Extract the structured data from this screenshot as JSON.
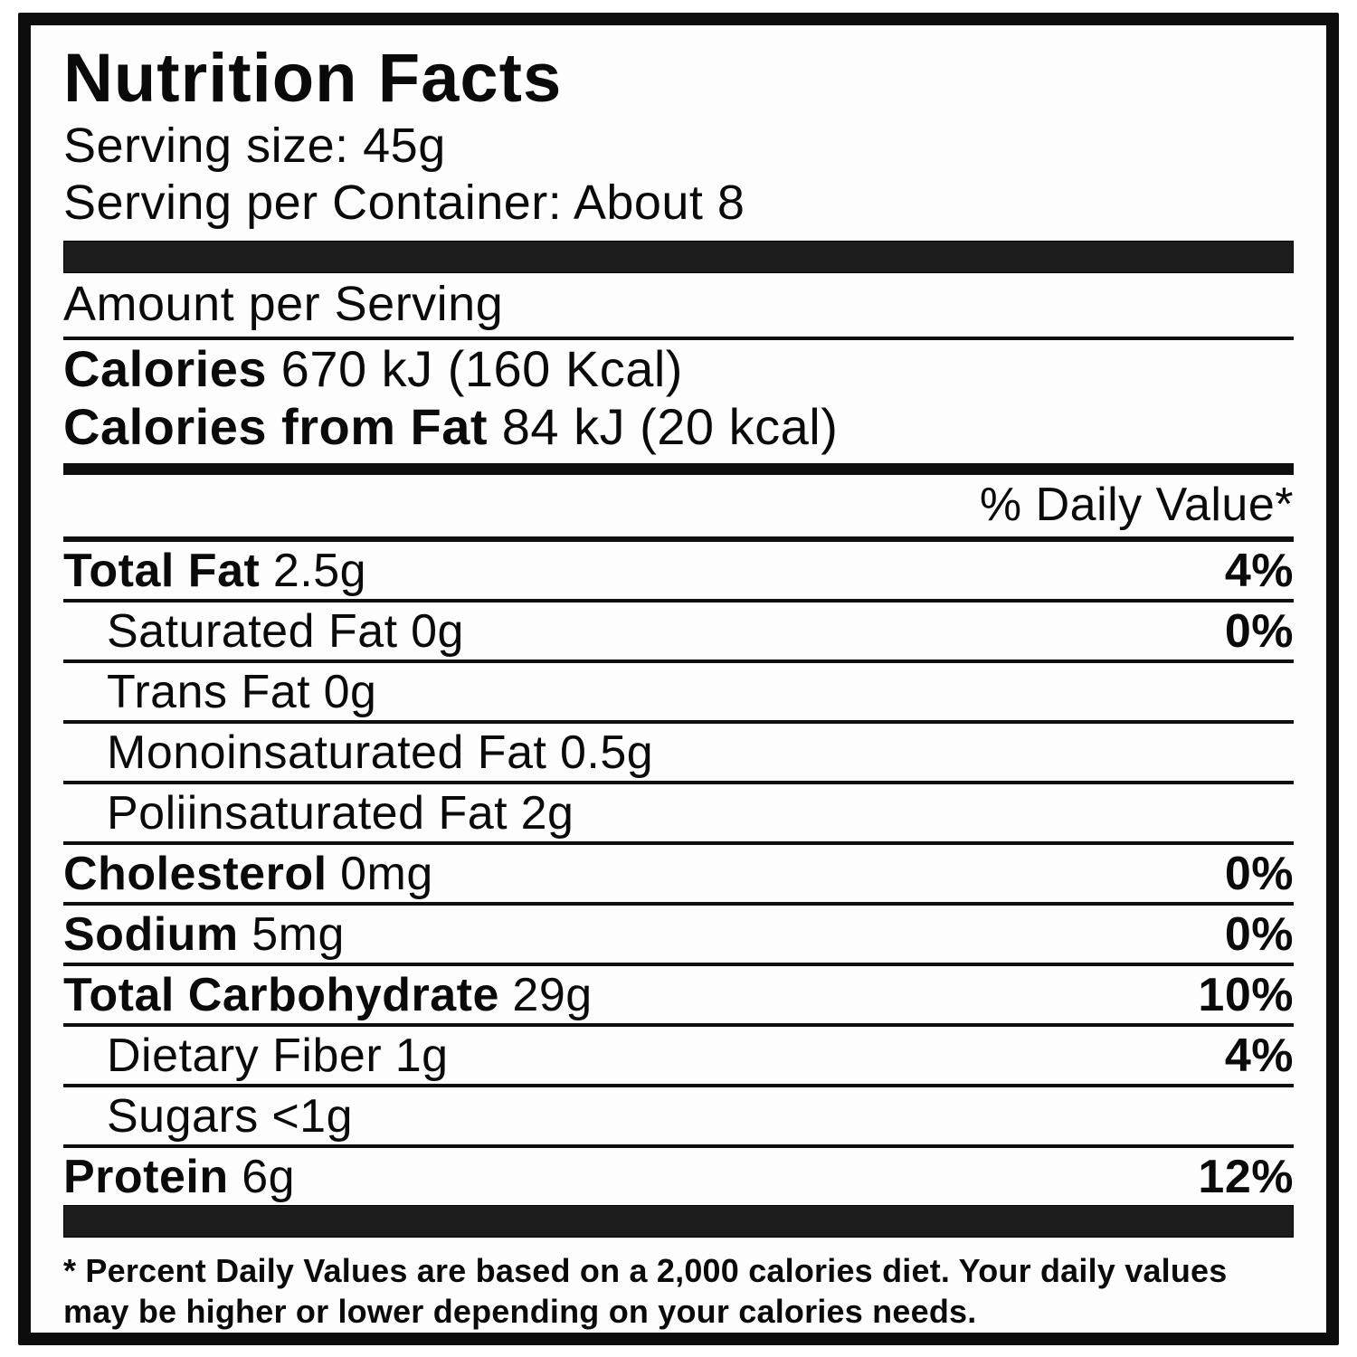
{
  "label": {
    "title": "Nutrition Facts",
    "serving_size": "Serving size: 45g",
    "servings_per_container": "Serving per Container: About 8",
    "amount_per_serving": "Amount per Serving",
    "calories": {
      "label": "Calories",
      "value": "670 kJ (160 Kcal)"
    },
    "calories_from_fat": {
      "label": "Calories from Fat",
      "value": "84 kJ (20 kcal)"
    },
    "daily_value_header": "% Daily Value*",
    "rows": [
      {
        "name": "Total Fat",
        "amount": "2.5g",
        "dv": "4%"
      },
      {
        "name": "Saturated Fat",
        "amount": "0g",
        "dv": "0%"
      },
      {
        "name": "Trans Fat",
        "amount": "0g",
        "dv": ""
      },
      {
        "name": "Monoinsaturated Fat",
        "amount": "0.5g",
        "dv": ""
      },
      {
        "name": "Poliinsaturated Fat",
        "amount": "2g",
        "dv": ""
      },
      {
        "name": "Cholesterol",
        "amount": "0mg",
        "dv": "0%"
      },
      {
        "name": "Sodium",
        "amount": "5mg",
        "dv": "0%"
      },
      {
        "name": "Total Carbohydrate",
        "amount": "29g",
        "dv": "10%"
      },
      {
        "name": "Dietary Fiber",
        "amount": "1g",
        "dv": "4%"
      },
      {
        "name": "Sugars",
        "amount": "<1g",
        "dv": ""
      },
      {
        "name": "Protein",
        "amount": "6g",
        "dv": "12%"
      }
    ],
    "footnote": "* Percent Daily Values are based on a 2,000 calories diet. Your daily values may be higher or lower depending on your calories needs."
  }
}
